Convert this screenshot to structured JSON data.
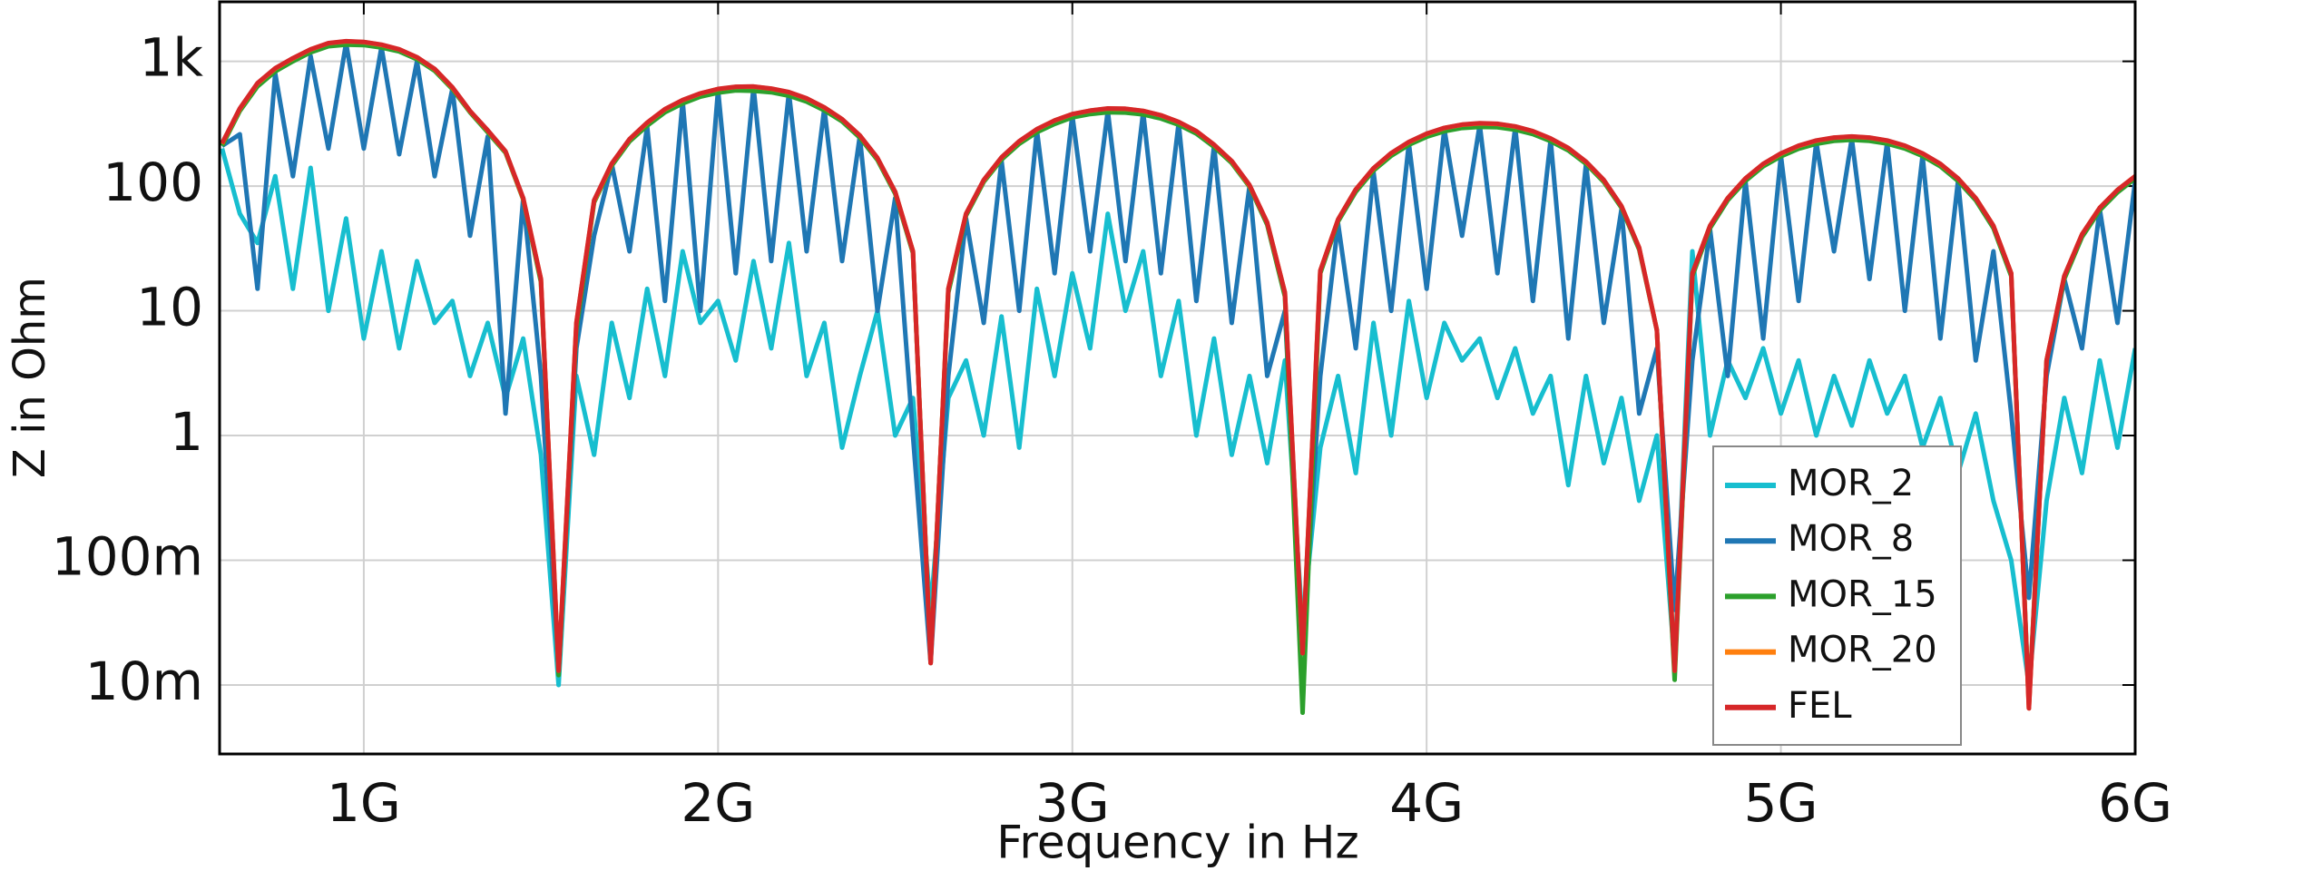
{
  "chart_data": {
    "type": "line",
    "x_label": "Frequency in Hz",
    "y_label": "Z in Ohm",
    "log_y": true,
    "grid": true,
    "legend": "lower right",
    "xlim": [
      593000000.0,
      6000000000.0
    ],
    "ylim": [
      0.0028,
      3000
    ],
    "xticks": [
      {
        "value": 1000000000.0,
        "label": "1G"
      },
      {
        "value": 2000000000.0,
        "label": "2G"
      },
      {
        "value": 3000000000.0,
        "label": "3G"
      },
      {
        "value": 4000000000.0,
        "label": "4G"
      },
      {
        "value": 5000000000.0,
        "label": "5G"
      },
      {
        "value": 6000000000.0,
        "label": "6G"
      }
    ],
    "yticks": [
      {
        "value": 0.01,
        "label": "10m"
      },
      {
        "value": 0.1,
        "label": "100m"
      },
      1,
      10,
      100,
      {
        "value": 1000,
        "label": "1k"
      }
    ],
    "x": [
      600000000.0,
      650000000.0,
      700000000.0,
      750000000.0,
      800000000.0,
      850000000.0,
      900000000.0,
      950000000.0,
      1000000000.0,
      1050000000.0,
      1100000000.0,
      1150000000.0,
      1200000000.0,
      1250000000.0,
      1300000000.0,
      1350000000.0,
      1400000000.0,
      1450000000.0,
      1500000000.0,
      1550000000.0,
      1600000000.0,
      1650000000.0,
      1700000000.0,
      1750000000.0,
      1800000000.0,
      1850000000.0,
      1900000000.0,
      1950000000.0,
      2000000000.0,
      2050000000.0,
      2100000000.0,
      2150000000.0,
      2200000000.0,
      2250000000.0,
      2300000000.0,
      2350000000.0,
      2400000000.0,
      2450000000.0,
      2500000000.0,
      2550000000.0,
      2600000000.0,
      2650000000.0,
      2700000000.0,
      2750000000.0,
      2800000000.0,
      2850000000.0,
      2900000000.0,
      2950000000.0,
      3000000000.0,
      3050000000.0,
      3100000000.0,
      3150000000.0,
      3200000000.0,
      3250000000.0,
      3300000000.0,
      3350000000.0,
      3400000000.0,
      3450000000.0,
      3500000000.0,
      3550000000.0,
      3600000000.0,
      3650000000.0,
      3700000000.0,
      3750000000.0,
      3800000000.0,
      3850000000.0,
      3900000000.0,
      3950000000.0,
      4000000000.0,
      4050000000.0,
      4100000000.0,
      4150000000.0,
      4200000000.0,
      4250000000.0,
      4300000000.0,
      4350000000.0,
      4400000000.0,
      4450000000.0,
      4500000000.0,
      4550000000.0,
      4600000000.0,
      4650000000.0,
      4700000000.0,
      4750000000.0,
      4800000000.0,
      4850000000.0,
      4900000000.0,
      4950000000.0,
      5000000000.0,
      5050000000.0,
      5100000000.0,
      5150000000.0,
      5200000000.0,
      5250000000.0,
      5300000000.0,
      5350000000.0,
      5400000000.0,
      5450000000.0,
      5500000000.0,
      5550000000.0,
      5600000000.0,
      5650000000.0,
      5700000000.0,
      5750000000.0,
      5800000000.0,
      5850000000.0,
      5900000000.0,
      5950000000.0,
      6000000000.0
    ],
    "series": [
      {
        "name": "MOR_2",
        "color": "#17becf",
        "values": [
          200,
          60,
          35,
          120,
          15,
          140,
          10,
          55,
          6,
          30,
          5,
          25,
          8,
          12,
          3,
          8,
          2,
          6,
          0.7,
          0.01,
          3,
          0.7,
          8,
          2,
          15,
          3,
          30,
          8,
          12,
          4,
          25,
          5,
          35,
          3,
          8,
          0.8,
          3,
          10,
          1,
          2,
          0.04,
          2,
          4,
          1,
          9,
          0.8,
          15,
          3,
          20,
          5,
          60,
          10,
          30,
          3,
          12,
          1,
          6,
          0.7,
          3,
          0.6,
          4,
          0.03,
          0.8,
          3,
          0.5,
          8,
          1,
          12,
          2,
          8,
          4,
          6,
          2,
          5,
          1.5,
          3,
          0.4,
          3,
          0.6,
          2,
          0.3,
          1,
          0.015,
          30,
          1,
          4,
          2,
          5,
          1.5,
          4,
          1,
          3,
          1.2,
          4,
          1.5,
          3,
          0.8,
          2,
          0.5,
          1.5,
          0.3,
          0.1,
          0.01,
          0.3,
          2,
          0.5,
          4,
          0.8,
          5
        ]
      },
      {
        "name": "MOR_8",
        "color": "#1f77b4",
        "values": [
          210,
          260,
          15,
          800,
          120,
          1100,
          200,
          1400,
          200,
          1300,
          180,
          1000,
          120,
          600,
          40,
          250,
          1.5,
          80,
          3,
          0.013,
          5,
          40,
          150,
          30,
          300,
          12,
          480,
          10,
          590,
          20,
          620,
          25,
          560,
          30,
          420,
          25,
          250,
          10,
          80,
          1,
          0.015,
          3,
          55,
          8,
          160,
          10,
          280,
          20,
          370,
          30,
          400,
          25,
          390,
          20,
          320,
          12,
          210,
          8,
          100,
          3,
          10,
          0.018,
          3,
          50,
          5,
          130,
          10,
          220,
          15,
          285,
          40,
          310,
          20,
          295,
          12,
          235,
          6,
          150,
          8,
          65,
          1.5,
          5,
          0.04,
          4,
          45,
          3,
          110,
          6,
          175,
          12,
          225,
          30,
          240,
          18,
          225,
          10,
          175,
          6,
          110,
          4,
          30,
          1.5,
          0.05,
          3,
          18,
          5,
          65,
          8,
          110
        ]
      },
      {
        "name": "MOR_15",
        "color": "#2ca02c",
        "values": [
          210,
          400,
          630,
          830,
          1000,
          1180,
          1320,
          1360,
          1350,
          1290,
          1200,
          1040,
          840,
          600,
          390,
          270,
          185,
          78,
          17,
          0.012,
          7,
          74,
          146,
          228,
          305,
          390,
          460,
          520,
          560,
          585,
          580,
          565,
          530,
          475,
          405,
          330,
          245,
          162,
          87,
          29,
          0.016,
          14,
          58,
          108,
          163,
          218,
          270,
          315,
          355,
          378,
          390,
          388,
          375,
          348,
          310,
          263,
          206,
          153,
          99,
          49,
          13,
          0.006,
          20,
          52,
          90,
          133,
          175,
          214,
          248,
          275,
          292,
          298,
          296,
          283,
          261,
          229,
          193,
          151,
          108,
          67,
          31,
          7,
          0.011,
          19,
          46,
          77,
          110,
          144,
          173,
          199,
          218,
          230,
          235,
          230,
          219,
          200,
          174,
          144,
          110,
          77,
          46,
          19,
          0.007,
          4,
          18,
          39,
          64,
          89,
          115
        ]
      },
      {
        "name": "MOR_20",
        "color": "#ff7f0e",
        "values": [
          218,
          415,
          665,
          875,
          1055,
          1245,
          1395,
          1445,
          1425,
          1355,
          1245,
          1075,
          865,
          615,
          398,
          278,
          189,
          79,
          18,
          0.013,
          8,
          76,
          151,
          237,
          321,
          412,
          488,
          552,
          599,
          624,
          627,
          603,
          565,
          503,
          426,
          343,
          254,
          167,
          90,
          30,
          0.015,
          15,
          60,
          111,
          169,
          228,
          285,
          335,
          377,
          402,
          418,
          416,
          400,
          369,
          326,
          275,
          214,
          158,
          101,
          51,
          14,
          0.018,
          21,
          54,
          94,
          138,
          183,
          225,
          262,
          292,
          310,
          318,
          315,
          300,
          275,
          240,
          201,
          156,
          111,
          69,
          32,
          7,
          0.013,
          20,
          48,
          80,
          115,
          150,
          182,
          210,
          231,
          244,
          249,
          244,
          231,
          210,
          182,
          150,
          115,
          80,
          48,
          20,
          0.0065,
          4,
          19,
          41,
          67,
          93,
          120
        ]
      },
      {
        "name": "FEL",
        "color": "#d62728",
        "values": [
          220,
          420,
          670,
          880,
          1060,
          1250,
          1400,
          1450,
          1430,
          1360,
          1250,
          1080,
          870,
          620,
          400,
          280,
          190,
          80,
          18,
          0.013,
          8,
          77,
          152,
          238,
          323,
          414,
          490,
          554,
          601,
          626,
          629,
          605,
          567,
          505,
          428,
          344,
          255,
          168,
          90,
          30,
          0.015,
          15,
          60,
          112,
          170,
          229,
          286,
          336,
          378,
          403,
          419,
          417,
          401,
          370,
          327,
          276,
          215,
          159,
          102,
          51,
          14,
          0.018,
          21,
          54,
          94,
          139,
          184,
          226,
          263,
          293,
          311,
          319,
          316,
          301,
          276,
          241,
          202,
          157,
          112,
          69,
          32,
          7,
          0.013,
          20,
          48,
          80,
          115,
          151,
          183,
          211,
          232,
          245,
          250,
          245,
          232,
          211,
          183,
          151,
          115,
          80,
          48,
          20,
          0.0065,
          4,
          19,
          41,
          67,
          93,
          120
        ]
      }
    ]
  }
}
